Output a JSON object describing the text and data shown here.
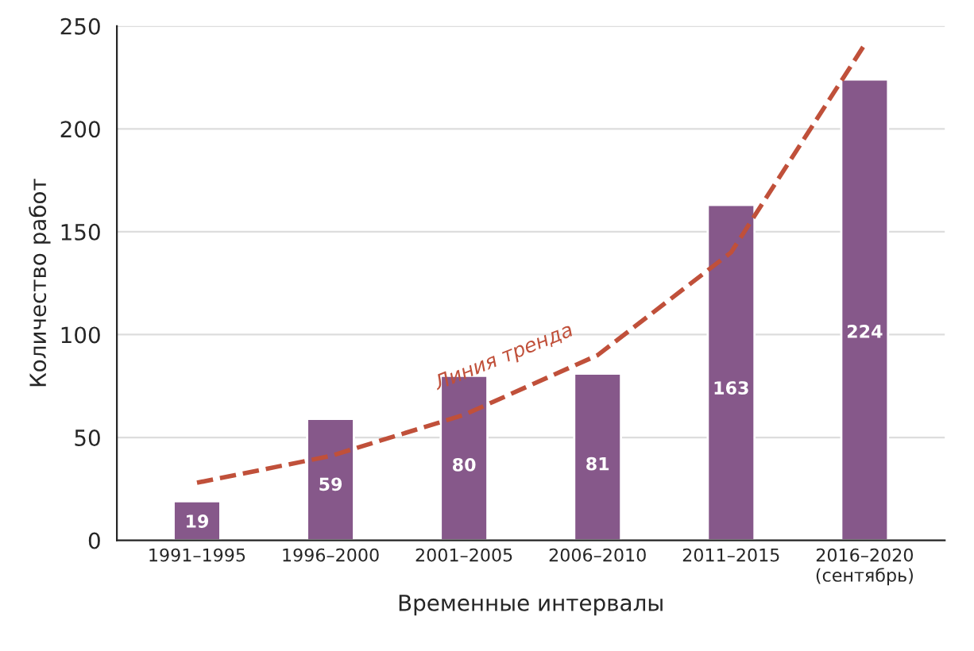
{
  "chart_data": {
    "type": "bar",
    "xlabel": "Временные интервалы",
    "ylabel": "Количество работ",
    "categories": [
      "1991–1995",
      "1996–2000",
      "2001–2005",
      "2006–2010",
      "2011–2015",
      "2016–2020\n(сентябрь)"
    ],
    "ylim": [
      0,
      250
    ],
    "yticks": [
      0,
      50,
      100,
      150,
      200,
      250
    ],
    "grid": "y",
    "series": [
      {
        "color": "#86588a",
        "values": [
          19,
          59,
          80,
          81,
          163,
          224
        ],
        "value_labels": [
          "19",
          "59",
          "80",
          "81",
          "163",
          "224"
        ]
      },
      {
        "type": "line",
        "color": "#c0503a",
        "line_style": "dashed",
        "values": [
          28,
          41,
          61,
          90,
          140,
          241
        ]
      }
    ],
    "annotations": [
      "Линия тренда"
    ]
  }
}
